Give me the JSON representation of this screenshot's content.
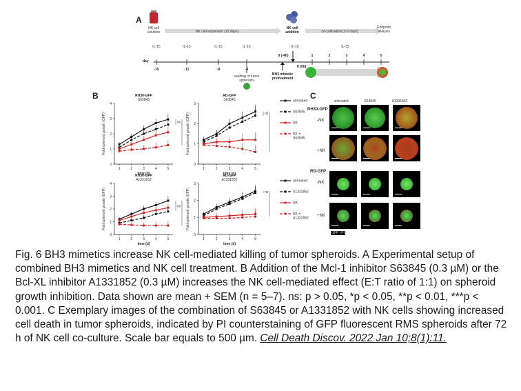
{
  "figure": {
    "panel_a": {
      "letter": "A",
      "labels": {
        "nk_isolation": [
          "NK cell",
          "isolation"
        ],
        "nk_expansion": "NK cell expansion (15 days)",
        "nk_addition": [
          "NK cell",
          "addition"
        ],
        "cocultivation": "co-cultivation (3-5 days)",
        "endpoint": [
          "Endpoint",
          "analysis"
        ],
        "seeding": [
          "seeding of tumor",
          "spheroids"
        ],
        "bh3_pre": [
          "BH3 mimetic",
          "pretreatment"
        ],
        "day_label": "day",
        "il15": "IL-15",
        "days_top": [
          "-15",
          "-11",
          "-8",
          "-4"
        ],
        "zero_4h": "0 (-4h)",
        "zero_0h": "0 (0h)",
        "cocult_days": [
          "1",
          "2",
          "3",
          "4",
          "5"
        ]
      }
    },
    "panel_b": {
      "letter": "B",
      "ylabel": "Fold spheroid growth (GFP)",
      "xlabel": "time (d)",
      "legend_top": [
        "untreated",
        "S63845",
        "NK",
        "NK + S63845"
      ],
      "legend_bottom": [
        "untreated",
        "A1331852",
        "NK",
        "NK + A1331852"
      ],
      "sig": {
        "ns": "ns"
      }
    },
    "panel_c": {
      "letter": "C",
      "col_headers": [
        "untreated",
        "S63845",
        "A1331852"
      ],
      "group1": "RH30-GFP",
      "group2": "RD-GFP",
      "row_labels": [
        "-NK",
        "+NK",
        "-NK",
        "+NK"
      ],
      "channel_tag": "GFP | PI"
    },
    "colors": {
      "black": "#111111",
      "red": "#d62020",
      "accent_green": "#2e8b2e"
    }
  },
  "chart_data": [
    {
      "type": "line",
      "title": "RH30-GFP\nS63845",
      "x": [
        1,
        2,
        3,
        4,
        5
      ],
      "xlabel": "time (d)",
      "ylabel": "Fold spheroid growth (GFP)",
      "ylim": [
        0,
        4
      ],
      "series": [
        {
          "name": "untreated",
          "values": [
            1.3,
            1.8,
            2.3,
            2.7,
            2.95
          ]
        },
        {
          "name": "S63845",
          "values": [
            1.1,
            1.6,
            2.0,
            2.3,
            2.6
          ]
        },
        {
          "name": "NK",
          "values": [
            1.0,
            1.3,
            1.6,
            1.9,
            2.1
          ]
        },
        {
          "name": "NK + S63845",
          "values": [
            0.85,
            0.95,
            1.0,
            1.1,
            1.25
          ]
        }
      ]
    },
    {
      "type": "line",
      "title": "RD-GFP\nS63845",
      "x": [
        1,
        2,
        3,
        4,
        5
      ],
      "xlabel": "time (d)",
      "ylabel": "Fold spheroid growth (GFP)",
      "ylim": [
        0,
        3
      ],
      "series": [
        {
          "name": "untreated",
          "values": [
            1.2,
            1.5,
            2.0,
            2.3,
            2.6
          ]
        },
        {
          "name": "S63845",
          "values": [
            1.1,
            1.4,
            1.8,
            2.1,
            2.4
          ]
        },
        {
          "name": "NK",
          "values": [
            1.0,
            1.1,
            1.1,
            1.2,
            1.2
          ]
        },
        {
          "name": "NK + S63845",
          "values": [
            0.95,
            0.9,
            0.85,
            0.75,
            0.6
          ]
        }
      ]
    },
    {
      "type": "line",
      "title": "RH30-GFP\nA1331852",
      "x": [
        1,
        2,
        3,
        4,
        5
      ],
      "xlabel": "time (d)",
      "ylabel": "Fold spheroid growth (GFP)",
      "ylim": [
        0,
        4
      ],
      "series": [
        {
          "name": "untreated",
          "values": [
            1.2,
            1.6,
            2.0,
            2.3,
            2.65
          ]
        },
        {
          "name": "A1331852",
          "values": [
            0.9,
            1.1,
            1.3,
            1.6,
            1.8
          ]
        },
        {
          "name": "NK",
          "values": [
            1.1,
            1.4,
            1.7,
            1.9,
            2.1
          ]
        },
        {
          "name": "NK + A1331852",
          "values": [
            0.8,
            0.75,
            0.7,
            0.7,
            0.7
          ]
        }
      ]
    },
    {
      "type": "line",
      "title": "RD-GFP\nA1331852",
      "x": [
        1,
        2,
        3,
        4,
        5
      ],
      "xlabel": "time (d)",
      "ylabel": "Fold spheroid growth (GFP)",
      "ylim": [
        0,
        3
      ],
      "series": [
        {
          "name": "untreated",
          "values": [
            1.2,
            1.6,
            1.9,
            2.2,
            2.55
          ]
        },
        {
          "name": "A1331852",
          "values": [
            1.1,
            1.5,
            1.8,
            2.1,
            2.45
          ]
        },
        {
          "name": "NK",
          "values": [
            1.0,
            1.05,
            1.1,
            1.15,
            1.2
          ]
        },
        {
          "name": "NK + A1331852",
          "values": [
            0.95,
            0.95,
            0.95,
            1.0,
            1.05
          ]
        }
      ]
    }
  ],
  "caption": {
    "text": "Fig. 6 BH3 mimetics increase NK cell-mediated killing of tumor spheroids. A Experimental setup of combined BH3 mimetics and NK cell treatment. B Addition of the Mcl-1 inhibitor S63845 (0.3 µM) or the Bcl-XL inhibitor A1331852 (0.3 µM) increases the NK cell-mediated effect (E:T ratio of 1:1) on spheroid growth inhibition. Data shown are mean + SEM (n = 5–7). ns: p > 0.05, *p < 0.05, **p < 0.01, ***p < 0.001. C Exemplary images of the combination of S63845 or A1331852 with NK cells showing increased cell death in tumor spheroids, indicated by PI counterstaining of GFP fluorescent RMS spheroids after 72 h of NK cell co-culture. Scale bar equals to 500 µm. ",
    "citation": "Cell Death Discov. 2022 Jan 10;8(1):11."
  }
}
